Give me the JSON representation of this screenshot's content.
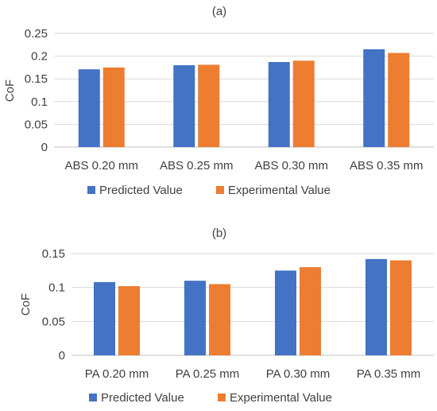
{
  "colors": {
    "predicted": "#4472C4",
    "experimental": "#ED7D31",
    "grid": "#D9D9D9",
    "axis": "#BFBFBF"
  },
  "chart_data": [
    {
      "type": "bar",
      "title": "(a)",
      "ylabel": "CoF",
      "xlabel": "",
      "ylim": [
        0,
        0.25
      ],
      "yticks": [
        "0",
        "0.05",
        "0.1",
        "0.15",
        "0.2",
        "0.25"
      ],
      "categories": [
        "ABS 0.20 mm",
        "ABS 0.25 mm",
        "ABS 0.30 mm",
        "ABS 0.35 mm"
      ],
      "series": [
        {
          "name": "Predicted Value",
          "values": [
            0.171,
            0.18,
            0.187,
            0.215
          ]
        },
        {
          "name": "Experimental Value",
          "values": [
            0.175,
            0.181,
            0.19,
            0.207
          ]
        }
      ],
      "grid": true,
      "legend": "bottom"
    },
    {
      "type": "bar",
      "title": "(b)",
      "ylabel": "CoF",
      "xlabel": "",
      "ylim": [
        0,
        0.15
      ],
      "yticks": [
        "0",
        "0.05",
        "0.1",
        "0.15"
      ],
      "categories": [
        "PA 0.20 mm",
        "PA 0.25 mm",
        "PA 0.30 mm",
        "PA 0.35 mm"
      ],
      "series": [
        {
          "name": "Predicted Value",
          "values": [
            0.108,
            0.11,
            0.125,
            0.142
          ]
        },
        {
          "name": "Experimental Value",
          "values": [
            0.102,
            0.105,
            0.13,
            0.14
          ]
        }
      ],
      "grid": true,
      "legend": "bottom"
    }
  ]
}
